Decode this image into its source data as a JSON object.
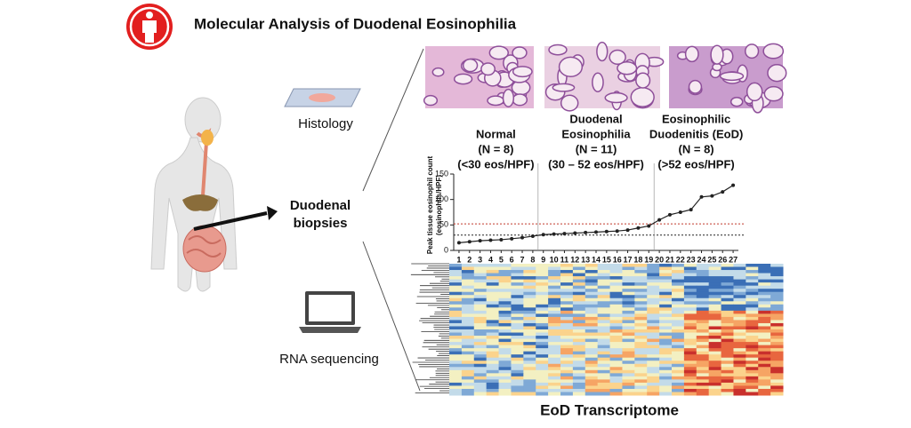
{
  "header": {
    "title": "Molecular Analysis of Duodenal Eosinophilia"
  },
  "labels": {
    "histology": "Histology",
    "biopsies": [
      "Duodenal",
      "biopsies"
    ],
    "rna": "RNA sequencing",
    "transcriptome": "EoD Transcriptome"
  },
  "groups": [
    {
      "name": [
        "Normal"
      ],
      "n_label": "(N = 8)",
      "n": 8,
      "range": "(<30 eos/HPF)"
    },
    {
      "name": [
        "Duodenal",
        "Eosinophilia"
      ],
      "n_label": "(N = 11)",
      "n": 11,
      "range": "(30 – 52 eos/HPF)"
    },
    {
      "name": [
        "Eosinophilic",
        "Duodenitis (EoD)"
      ],
      "n_label": "(N = 8)",
      "n": 8,
      "range": "(>52 eos/HPF)"
    }
  ],
  "chart_data": {
    "type": "line",
    "y_label": [
      "Peak tissue eosinophil count",
      "(eosinophils/HPF)"
    ],
    "x": [
      1,
      2,
      3,
      4,
      5,
      6,
      7,
      8,
      9,
      10,
      11,
      12,
      13,
      14,
      15,
      16,
      17,
      18,
      19,
      20,
      21,
      22,
      23,
      24,
      25,
      26,
      27
    ],
    "values": [
      15,
      17,
      19,
      20,
      21,
      23,
      25,
      28,
      31,
      32,
      33,
      34,
      35,
      36,
      37,
      38,
      40,
      44,
      48,
      60,
      70,
      75,
      80,
      105,
      107,
      115,
      128
    ],
    "xlim": [
      0.5,
      27.5
    ],
    "xticks": [
      1,
      2,
      3,
      4,
      5,
      6,
      7,
      8,
      9,
      10,
      11,
      12,
      13,
      14,
      15,
      16,
      17,
      18,
      19,
      20,
      21,
      22,
      23,
      24,
      25,
      26,
      27
    ],
    "ylim": [
      0,
      150
    ],
    "yticks": [
      0,
      50,
      100,
      150
    ],
    "color": "#222222",
    "reference_lines": [
      {
        "value": 30,
        "color": "#222222"
      },
      {
        "value": 52,
        "color": "#c0392b"
      }
    ]
  }
}
